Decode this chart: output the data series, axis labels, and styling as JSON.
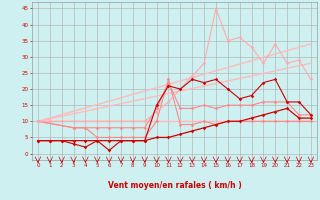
{
  "background_color": "#cff0f0",
  "grid_color": "#aaaaaa",
  "x_label": "Vent moyen/en rafales ( km/h )",
  "x_ticks": [
    0,
    1,
    2,
    3,
    4,
    5,
    6,
    7,
    8,
    9,
    10,
    11,
    12,
    13,
    14,
    15,
    16,
    17,
    18,
    19,
    20,
    21,
    22,
    23
  ],
  "y_ticks": [
    0,
    5,
    10,
    15,
    20,
    25,
    30,
    35,
    40,
    45
  ],
  "ylim": [
    -2,
    47
  ],
  "xlim": [
    -0.5,
    23.5
  ],
  "lines": [
    {
      "x": [
        0,
        1,
        2,
        3,
        4,
        5,
        6,
        7,
        8,
        9,
        10,
        11,
        12,
        13,
        14,
        15,
        16,
        17,
        18,
        19,
        20,
        21,
        22,
        23
      ],
      "y": [
        4,
        4,
        4,
        4,
        4,
        4,
        4,
        4,
        4,
        4,
        5,
        5,
        6,
        7,
        8,
        9,
        10,
        10,
        11,
        12,
        13,
        14,
        11,
        11
      ],
      "color": "#cc0000",
      "lw": 0.9,
      "marker": "D",
      "ms": 1.8,
      "zorder": 5
    },
    {
      "x": [
        0,
        1,
        2,
        3,
        4,
        5,
        6,
        7,
        8,
        9,
        10,
        11,
        12,
        13,
        14,
        15,
        16,
        17,
        18,
        19,
        20,
        21,
        22,
        23
      ],
      "y": [
        4,
        4,
        4,
        3,
        2,
        4,
        1,
        4,
        4,
        4,
        15,
        21,
        20,
        23,
        22,
        23,
        20,
        17,
        18,
        22,
        23,
        16,
        16,
        12
      ],
      "color": "#cc0000",
      "lw": 0.8,
      "marker": "D",
      "ms": 1.8,
      "zorder": 5
    },
    {
      "x": [
        0,
        23
      ],
      "y": [
        10,
        10
      ],
      "color": "#ffbbbb",
      "lw": 1.0,
      "marker": null,
      "ms": 0,
      "zorder": 2
    },
    {
      "x": [
        0,
        23
      ],
      "y": [
        10,
        34
      ],
      "color": "#ffbbbb",
      "lw": 1.0,
      "marker": null,
      "ms": 0,
      "zorder": 2
    },
    {
      "x": [
        0,
        23
      ],
      "y": [
        10,
        28
      ],
      "color": "#ffbbbb",
      "lw": 1.0,
      "marker": null,
      "ms": 0,
      "zorder": 2
    },
    {
      "x": [
        0,
        3,
        4,
        5,
        6,
        7,
        8,
        9,
        10,
        11,
        12,
        13,
        14,
        15,
        16,
        17,
        18,
        19,
        20,
        21,
        22,
        23
      ],
      "y": [
        10,
        8,
        8,
        5,
        5,
        5,
        5,
        5,
        10,
        23,
        9,
        9,
        10,
        9,
        10,
        10,
        10,
        10,
        10,
        10,
        10,
        10
      ],
      "color": "#ff8888",
      "lw": 0.8,
      "marker": "D",
      "ms": 1.8,
      "zorder": 4
    },
    {
      "x": [
        0,
        3,
        4,
        5,
        6,
        7,
        8,
        9,
        10,
        11,
        12,
        13,
        14,
        15,
        16,
        17,
        18,
        19,
        20,
        21,
        22,
        23
      ],
      "y": [
        10,
        8,
        8,
        8,
        8,
        8,
        8,
        8,
        14,
        22,
        14,
        14,
        15,
        14,
        15,
        15,
        15,
        16,
        16,
        16,
        12,
        12
      ],
      "color": "#ff8888",
      "lw": 0.8,
      "marker": "D",
      "ms": 1.8,
      "zorder": 4
    },
    {
      "x": [
        0,
        1,
        2,
        3,
        4,
        5,
        6,
        7,
        8,
        9,
        10,
        11,
        12,
        13,
        14,
        15,
        16,
        17,
        18,
        19,
        20,
        21,
        22,
        23
      ],
      "y": [
        10,
        10,
        10,
        10,
        10,
        10,
        10,
        10,
        10,
        10,
        13,
        16,
        20,
        24,
        28,
        45,
        35,
        36,
        33,
        28,
        34,
        28,
        29,
        23
      ],
      "color": "#ffaaaa",
      "lw": 0.8,
      "marker": "D",
      "ms": 1.8,
      "zorder": 4
    }
  ],
  "arrows": {
    "color": "#cc0000",
    "x_positions": [
      0,
      1,
      2,
      3,
      4,
      5,
      6,
      7,
      8,
      9,
      10,
      11,
      12,
      13,
      14,
      15,
      16,
      17,
      18,
      19,
      20,
      21,
      22,
      23
    ]
  },
  "tick_color": "#cc0000",
  "axis_label_color": "#cc0000",
  "axis_label_fontsize": 5.5,
  "tick_fontsize": 4.0
}
